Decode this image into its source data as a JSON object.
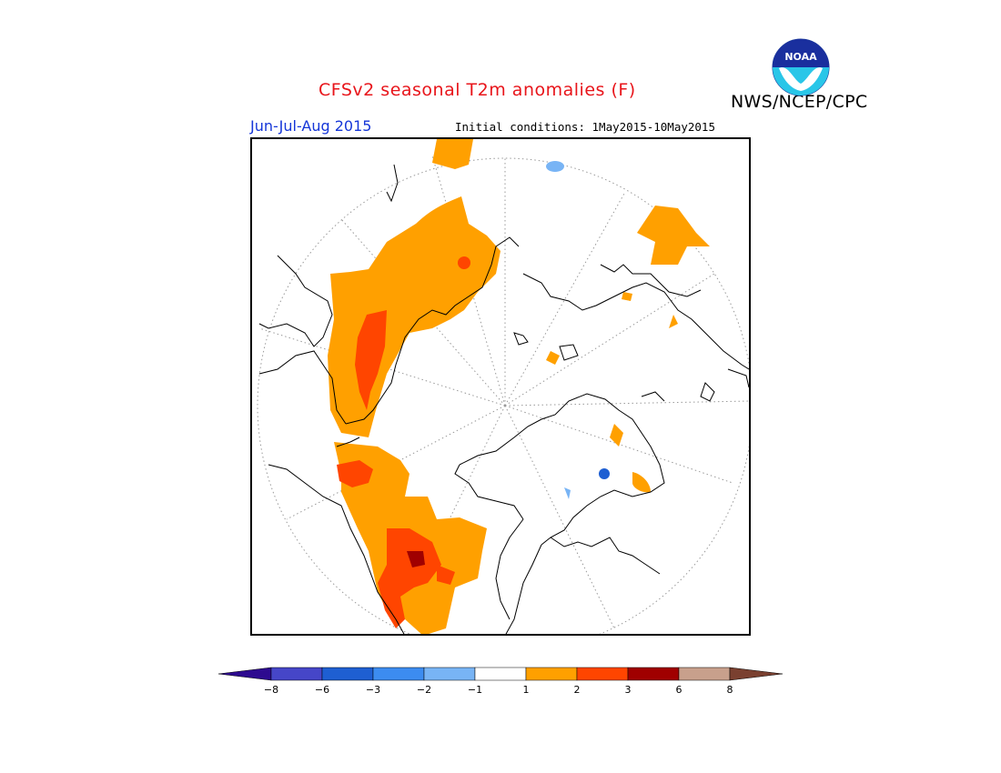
{
  "header": {
    "title": "CFSv2 seasonal T2m anomalies (F)",
    "org": "NWS/NCEP/CPC",
    "season": "Jun-Jul-Aug 2015",
    "initial_conditions": "Initial conditions: 1May2015-10May2015",
    "logo_text": "NOAA"
  },
  "colorbar": {
    "ticks": [
      "−8",
      "−6",
      "−3",
      "−2",
      "−1",
      "1",
      "2",
      "3",
      "6",
      "8"
    ],
    "colors": [
      "#2d0a8f",
      "#4646c8",
      "#1e5fd2",
      "#3c8cf0",
      "#78b4f5",
      "#ffffff",
      "#ffa000",
      "#ff4500",
      "#a00000",
      "#c8a08c",
      "#7a4030"
    ]
  },
  "map": {
    "projection": "polar-stereographic",
    "colors": {
      "border": "#000000",
      "coast": "#000000",
      "grid": "#999999"
    }
  }
}
